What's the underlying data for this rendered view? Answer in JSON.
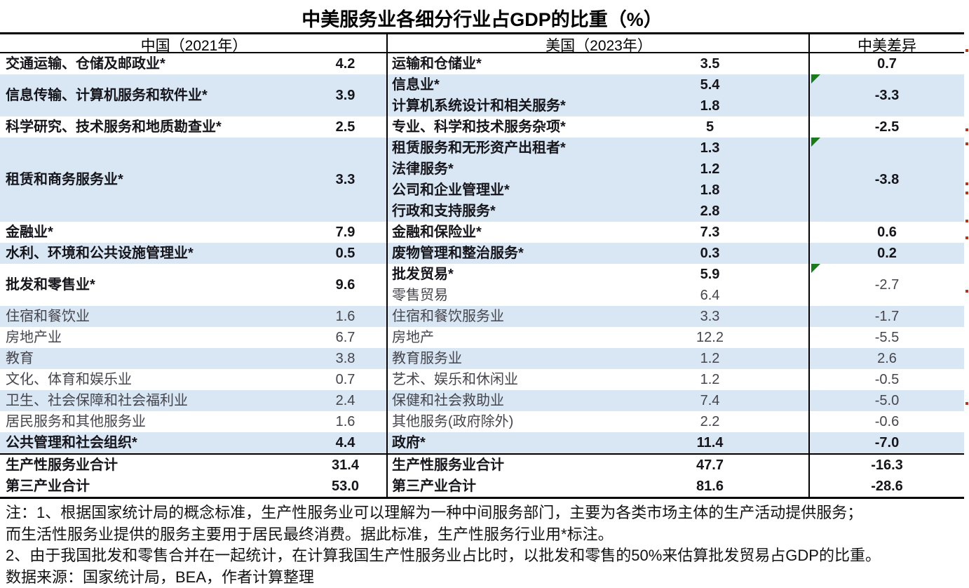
{
  "title": "中美服务业各细分行业占GDP的比重（%）",
  "table": {
    "headers": {
      "china": "中国（2021年）",
      "us": "美国（2023年）",
      "diff": "中美差异"
    },
    "colors": {
      "row_shade": "#d9e6f4",
      "flag_green": "#1c7a1c",
      "border_black": "#000000",
      "bold_text": "#15151b",
      "regular_text": "#45454d",
      "clipped_mark_red": "#b0371f"
    },
    "rows": [
      {
        "shaded": false,
        "cn": {
          "label": "交通运输、仓储及邮政业*",
          "value": "4.2",
          "span": 1,
          "bold": true
        },
        "us": {
          "label": "运输和仓储业*",
          "value": "3.5",
          "bold": true
        },
        "diff": {
          "value": "0.7",
          "span": 1,
          "bold": true,
          "flag": false
        }
      },
      {
        "shaded": true,
        "cn": {
          "label": "信息传输、计算机服务和软件业*",
          "value": "3.9",
          "span": 2,
          "bold": true
        },
        "us": {
          "label": "信息业*",
          "value": "5.4",
          "bold": true
        },
        "diff": {
          "value": "-3.3",
          "span": 2,
          "bold": true,
          "flag": true
        }
      },
      {
        "shaded": true,
        "cn": null,
        "us": {
          "label": "计算机系统设计和相关服务*",
          "value": "1.8",
          "bold": true
        },
        "diff": null
      },
      {
        "shaded": false,
        "cn": {
          "label": "科学研究、技术服务和地质勘查业*",
          "value": "2.5",
          "span": 1,
          "bold": true
        },
        "us": {
          "label": "专业、科学和技术服务杂项*",
          "value": "5",
          "bold": true
        },
        "diff": {
          "value": "-2.5",
          "span": 1,
          "bold": true,
          "flag": false
        }
      },
      {
        "shaded": true,
        "cn": {
          "label": "租赁和商务服务业*",
          "value": "3.3",
          "span": 4,
          "bold": true
        },
        "us": {
          "label": "租赁服务和无形资产出租者*",
          "value": "1.3",
          "bold": true
        },
        "diff": {
          "value": "-3.8",
          "span": 4,
          "bold": true,
          "flag": true
        }
      },
      {
        "shaded": true,
        "cn": null,
        "us": {
          "label": "法律服务*",
          "value": "1.2",
          "bold": true
        },
        "diff": null
      },
      {
        "shaded": true,
        "cn": null,
        "us": {
          "label": "公司和企业管理业*",
          "value": "1.8",
          "bold": true
        },
        "diff": null
      },
      {
        "shaded": true,
        "cn": null,
        "us": {
          "label": "行政和支持服务*",
          "value": "2.8",
          "bold": true
        },
        "diff": null
      },
      {
        "shaded": false,
        "cn": {
          "label": "金融业*",
          "value": "7.9",
          "span": 1,
          "bold": true
        },
        "us": {
          "label": "金融和保险业*",
          "value": "7.3",
          "bold": true
        },
        "diff": {
          "value": "0.6",
          "span": 1,
          "bold": true,
          "flag": false
        }
      },
      {
        "shaded": true,
        "cn": {
          "label": "水利、环境和公共设施管理业*",
          "value": "0.5",
          "span": 1,
          "bold": true
        },
        "us": {
          "label": "废物管理和整治服务*",
          "value": "0.3",
          "bold": true
        },
        "diff": {
          "value": "0.2",
          "span": 1,
          "bold": true,
          "flag": false
        }
      },
      {
        "shaded": false,
        "cn": {
          "label": "批发和零售业*",
          "value": "9.6",
          "span": 2,
          "bold": true
        },
        "us": {
          "label": "批发贸易*",
          "value": "5.9",
          "bold": true
        },
        "diff": {
          "value": "-2.7",
          "span": 2,
          "bold": false,
          "flag": true
        }
      },
      {
        "shaded": false,
        "cn": null,
        "us": {
          "label": "零售贸易",
          "value": "6.4",
          "bold": false
        },
        "diff": null
      },
      {
        "shaded": true,
        "cn": {
          "label": "住宿和餐饮业",
          "value": "1.6",
          "span": 1,
          "bold": false
        },
        "us": {
          "label": "住宿和餐饮服务业",
          "value": "3.3",
          "bold": false
        },
        "diff": {
          "value": "-1.7",
          "span": 1,
          "bold": false,
          "flag": false
        }
      },
      {
        "shaded": false,
        "cn": {
          "label": "房地产业",
          "value": "6.7",
          "span": 1,
          "bold": false
        },
        "us": {
          "label": "房地产",
          "value": "12.2",
          "bold": false
        },
        "diff": {
          "value": "-5.5",
          "span": 1,
          "bold": false,
          "flag": false
        }
      },
      {
        "shaded": true,
        "cn": {
          "label": "教育",
          "value": "3.8",
          "span": 1,
          "bold": false
        },
        "us": {
          "label": "教育服务业",
          "value": "1.2",
          "bold": false
        },
        "diff": {
          "value": "2.6",
          "span": 1,
          "bold": false,
          "flag": false
        }
      },
      {
        "shaded": false,
        "cn": {
          "label": "文化、体育和娱乐业",
          "value": "0.7",
          "span": 1,
          "bold": false
        },
        "us": {
          "label": "艺术、娱乐和休闲业",
          "value": "1.2",
          "bold": false
        },
        "diff": {
          "value": "-0.5",
          "span": 1,
          "bold": false,
          "flag": false
        }
      },
      {
        "shaded": true,
        "cn": {
          "label": "卫生、社会保障和社会福利业",
          "value": "2.4",
          "span": 1,
          "bold": false
        },
        "us": {
          "label": "保健和社会救助业",
          "value": "7.4",
          "bold": false
        },
        "diff": {
          "value": "-5.0",
          "span": 1,
          "bold": false,
          "flag": false
        }
      },
      {
        "shaded": false,
        "cn": {
          "label": "居民服务和其他服务业",
          "value": "1.6",
          "span": 1,
          "bold": false
        },
        "us": {
          "label": "其他服务(政府除外)",
          "value": "2.2",
          "bold": false
        },
        "diff": {
          "value": "-0.6",
          "span": 1,
          "bold": false,
          "flag": false
        }
      },
      {
        "shaded": true,
        "cn": {
          "label": "公共管理和社会组织*",
          "value": "4.4",
          "span": 1,
          "bold": true
        },
        "us": {
          "label": "政府*",
          "value": "11.4",
          "bold": true
        },
        "diff": {
          "value": "-7.0",
          "span": 1,
          "bold": true,
          "flag": false
        }
      }
    ],
    "totals": [
      {
        "cn_label": "生产性服务业合计",
        "cn_value": "31.4",
        "us_label": "生产性服务业合计",
        "us_value": "47.7",
        "diff": "-16.3"
      },
      {
        "cn_label": "第三产业合计",
        "cn_value": "53.0",
        "us_label": "第三产业合计",
        "us_value": "81.6",
        "diff": "-28.6"
      }
    ]
  },
  "notes": [
    "注：1、根据国家统计局的概念标准，生产性服务业可以理解为一种中间服务部门，主要为各类市场主体的生产活动提供服务；",
    "而生活性服务业提供的服务主要用于居民最终消费。据此标准，生产性服务行业用*标注。",
    "2、由于我国批发和零售合并在一起统计，在计算我国生产性服务业占比时，以批发和零售的50%来估算批发贸易占GDP的比重。",
    "数据来源：国家统计局，BEA，作者计算整理"
  ],
  "artifacts": {
    "right_edge_clipped_marks_y": [
      70,
      183,
      203,
      260,
      273,
      313,
      337,
      413,
      573
    ]
  }
}
